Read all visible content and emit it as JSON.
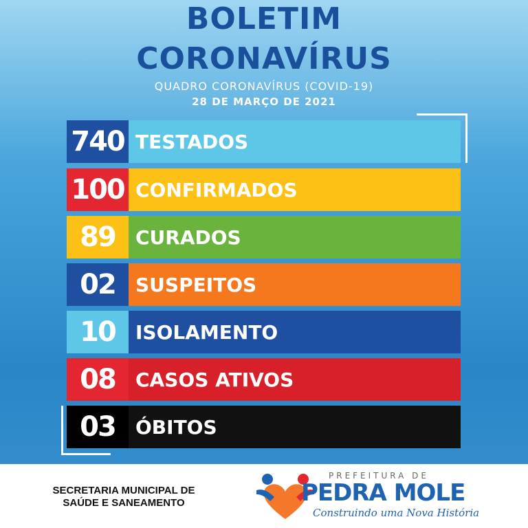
{
  "header": {
    "title": [
      "BOLETIM",
      "CORONAVÍRUS"
    ],
    "subtitle": "QUADRO CORONAVÍRUS (COVID-19)",
    "date": "28 DE MARÇO DE 2021"
  },
  "rows": [
    {
      "value": "740",
      "label": "TESTADOS"
    },
    {
      "value": "100",
      "label": "CONFIRMADOS"
    },
    {
      "value": "89",
      "label": "CURADOS"
    },
    {
      "value": "02",
      "label": "SUSPEITOS"
    },
    {
      "value": "10",
      "label": "ISOLAMENTO"
    },
    {
      "value": "08",
      "label": "CASOS ATIVOS"
    },
    {
      "value": "03",
      "label": "ÓBITOS"
    }
  ],
  "footer": {
    "department": [
      "SECRETARIA MUNICIPAL DE",
      "SAÚDE E SANEAMENTO"
    ],
    "logo": {
      "top": "PREFEITURA DE",
      "name": "PEDRA MOLE",
      "slogan": "Construindo uma Nova História"
    }
  }
}
